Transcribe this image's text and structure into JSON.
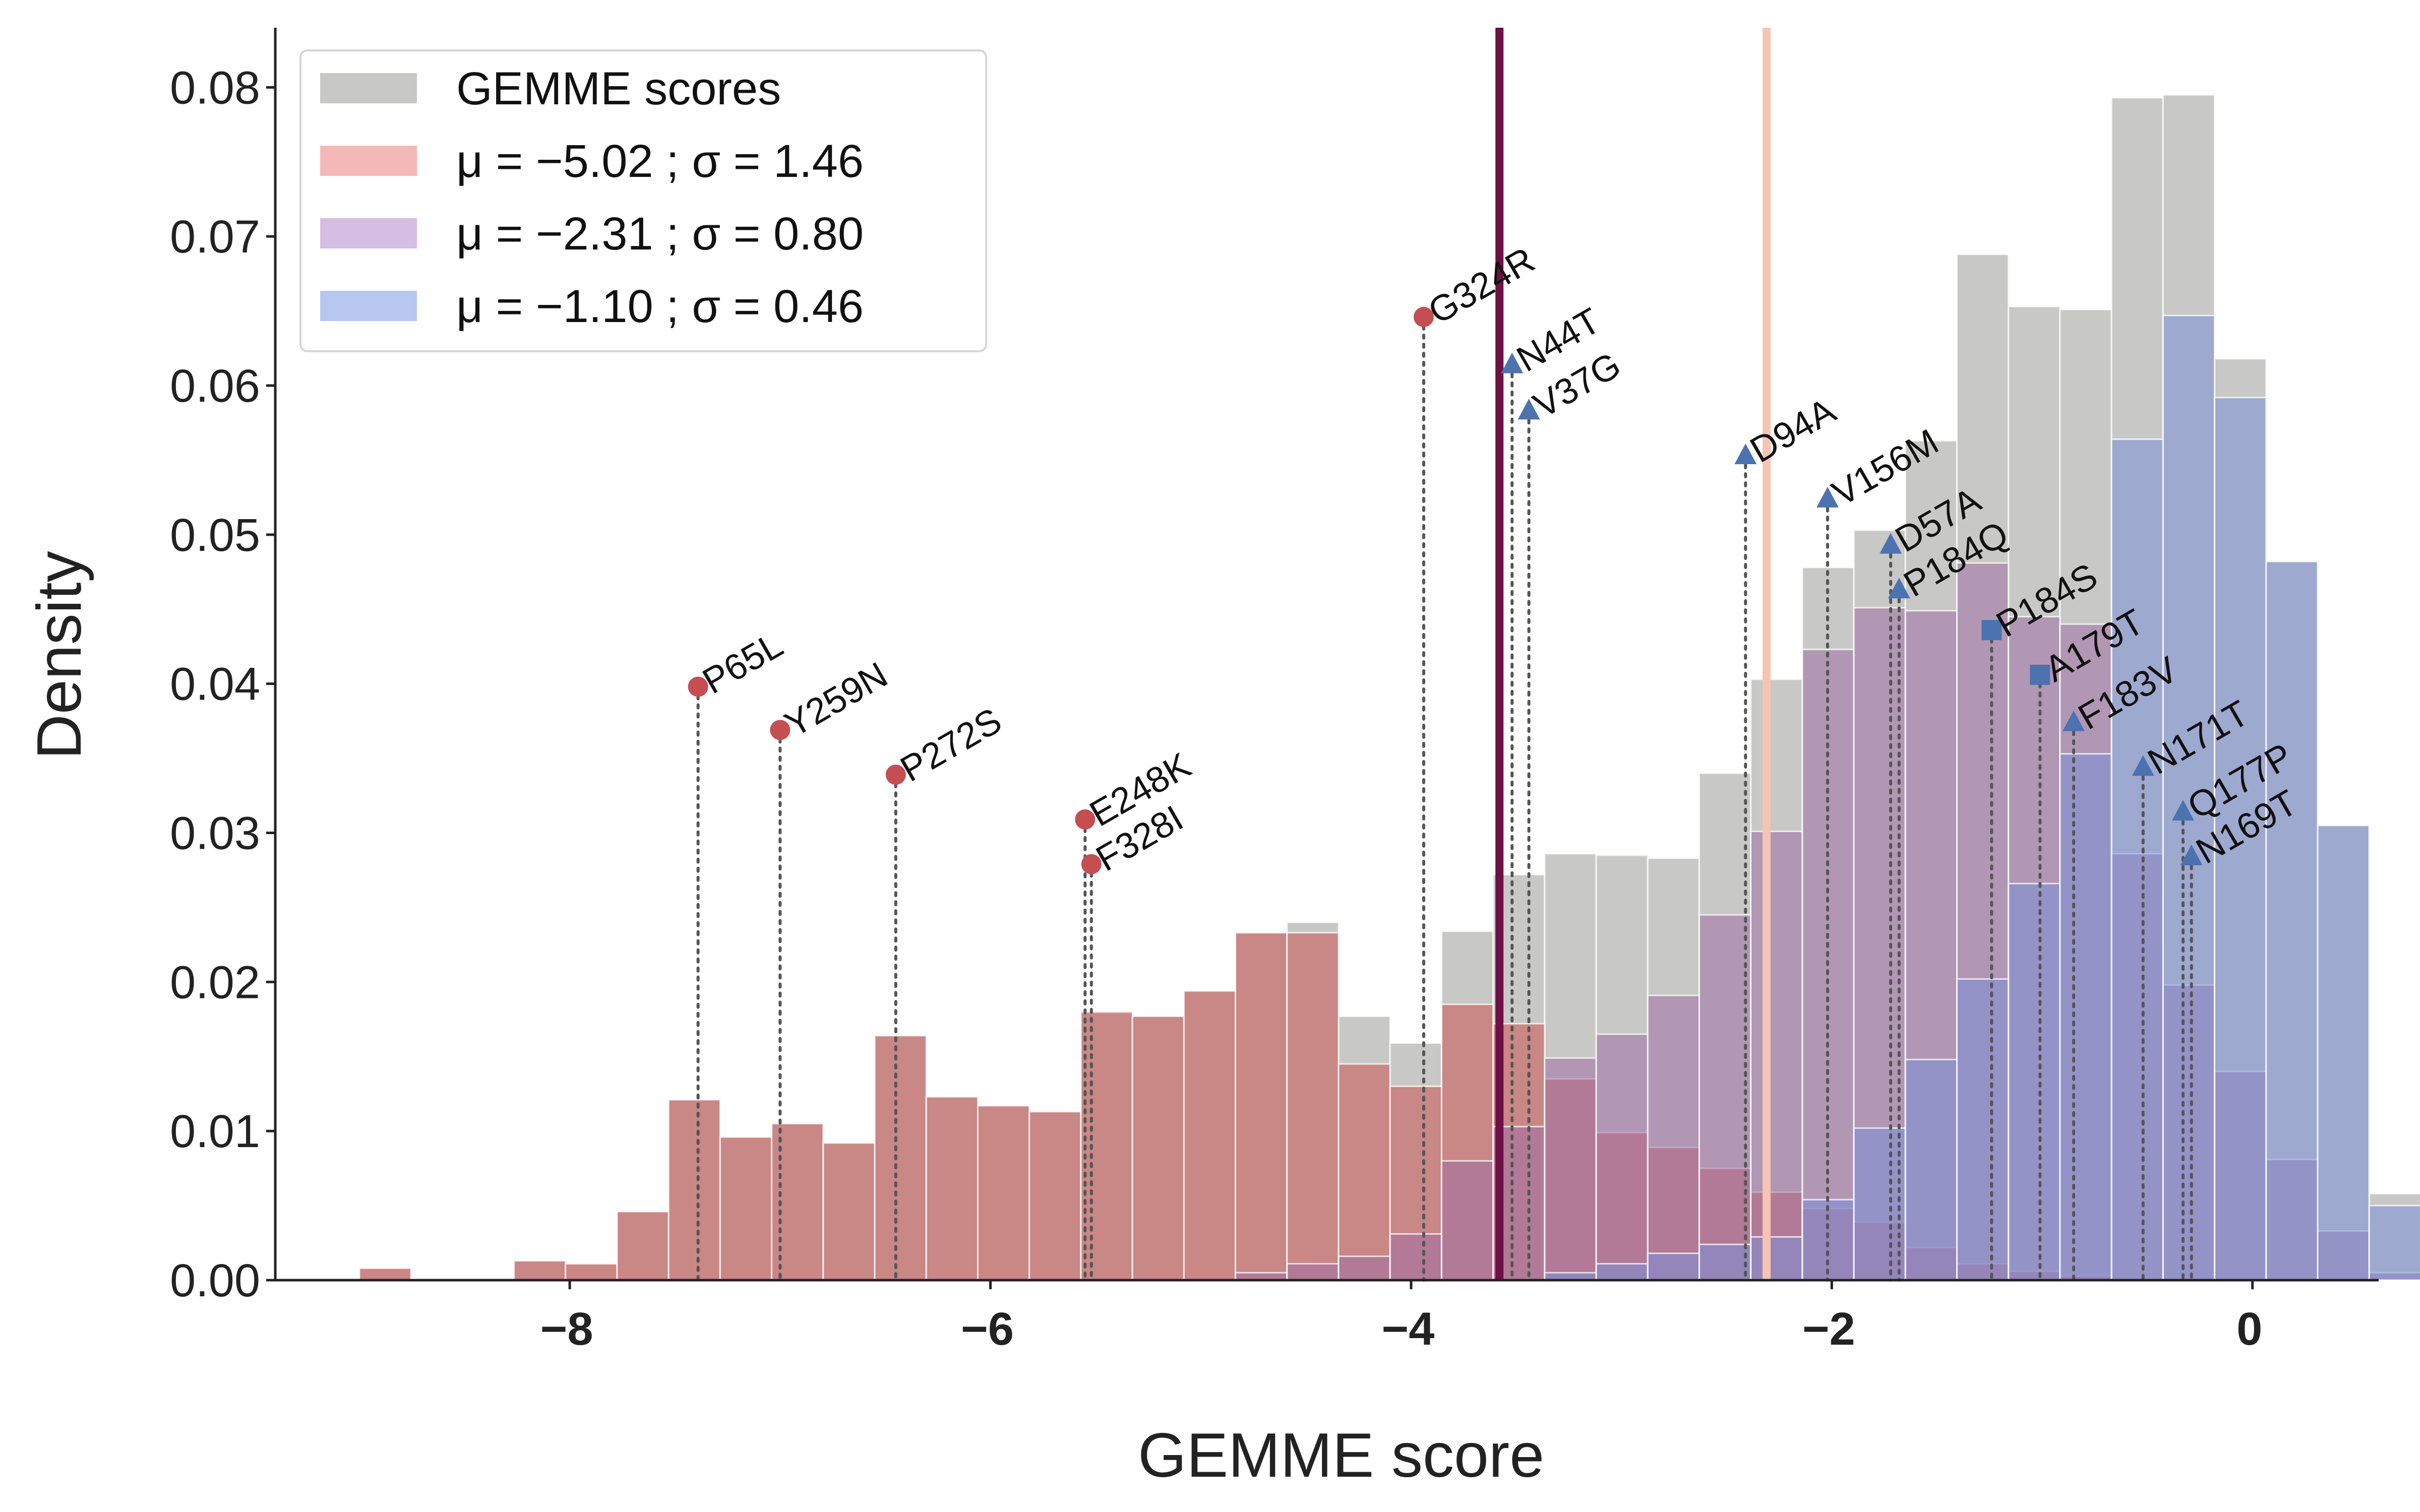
{
  "chart_data": {
    "type": "bar",
    "xlabel": "GEMME score",
    "ylabel": "Density",
    "xlim": [
      -9.4,
      0.6
    ],
    "ylim": [
      0,
      0.084
    ],
    "xticks": [
      -8,
      -6,
      -4,
      -2,
      0
    ],
    "xtick_labels": [
      "−8",
      "−6",
      "−4",
      "−2",
      "0"
    ],
    "yticks": [
      0,
      0.01,
      0.02,
      0.03,
      0.04,
      0.05,
      0.06,
      0.07,
      0.08
    ],
    "ytick_labels": [
      "0.00",
      "0.01",
      "0.02",
      "0.03",
      "0.04",
      "0.05",
      "0.06",
      "0.07",
      "0.08"
    ],
    "grid": false,
    "legend": {
      "placement": "top-left",
      "entries": [
        {
          "label": "GEMME scores",
          "color": "#c8c8c6"
        },
        {
          "label": "μ = −5.02 ; σ = 1.46",
          "color": "#f4b8b8"
        },
        {
          "label": "μ = −2.31 ; σ = 0.80",
          "color": "#d6bde3"
        },
        {
          "label": "μ = −1.10 ; σ = 0.46",
          "color": "#b8c7f0"
        }
      ]
    },
    "bin_start": -9.0,
    "bin_width": 0.245,
    "series": [
      {
        "name": "GEMME scores",
        "color": "#c8c8c6",
        "values": [
          0.0008,
          0,
          0,
          0.0013,
          0.0011,
          0.0046,
          0.0121,
          0.0096,
          0.0105,
          0.0092,
          0.0164,
          0.0123,
          0.0117,
          0.0113,
          0.0179,
          0.0177,
          0.0194,
          0.0233,
          0.024,
          0.0177,
          0.0159,
          0.0234,
          0.0272,
          0.0286,
          0.0285,
          0.0283,
          0.034,
          0.0403,
          0.0478,
          0.0503,
          0.0563,
          0.0688,
          0.0653,
          0.0651,
          0.0793,
          0.0795,
          0.0618,
          0.0482,
          0.0305,
          0.0058
        ]
      },
      {
        "name": "μ = −5.02 ; σ = 1.46",
        "color": "#c96e6e",
        "values": [
          0.0008,
          0,
          0,
          0.0013,
          0.0011,
          0.0046,
          0.0121,
          0.0096,
          0.0105,
          0.0092,
          0.0164,
          0.0123,
          0.0117,
          0.0113,
          0.018,
          0.0177,
          0.0194,
          0.0233,
          0.0233,
          0.0145,
          0.013,
          0.0185,
          0.0172,
          0.0135,
          0.0099,
          0.0089,
          0.0075,
          0.0059,
          0.0048,
          0.0039,
          0.0022,
          0.0011,
          0.0006,
          0.0003,
          0,
          0,
          0,
          0,
          0,
          0
        ]
      },
      {
        "name": "μ = −2.31 ; σ = 0.80",
        "color": "#9e6fa6",
        "values": [
          0,
          0,
          0,
          0,
          0,
          0,
          0,
          0,
          0,
          0,
          0,
          0,
          0,
          0,
          0,
          0,
          0,
          0.0005,
          0.0011,
          0.0016,
          0.0031,
          0.008,
          0.0103,
          0.0149,
          0.0165,
          0.0191,
          0.0245,
          0.0301,
          0.0423,
          0.0451,
          0.0449,
          0.0481,
          0.0445,
          0.044,
          0.0286,
          0.0198,
          0.014,
          0.0081,
          0.0033,
          0.0005
        ]
      },
      {
        "name": "μ = −1.10 ; σ = 0.46",
        "color": "#7b8fd8",
        "values": [
          0,
          0,
          0,
          0,
          0,
          0,
          0,
          0,
          0,
          0,
          0,
          0,
          0,
          0,
          0,
          0,
          0,
          0,
          0,
          0,
          0,
          0,
          0,
          0.0005,
          0.0011,
          0.0018,
          0.0024,
          0.0029,
          0.0054,
          0.0102,
          0.0148,
          0.0202,
          0.0266,
          0.0353,
          0.0564,
          0.0647,
          0.0592,
          0.0482,
          0.0305,
          0.005
        ]
      }
    ],
    "vertical_lines": [
      {
        "x": -3.58,
        "color": "#6e0f46"
      },
      {
        "x": -2.31,
        "color": "#f7c4b4"
      }
    ],
    "annotations": [
      {
        "label": "P65L",
        "x": -7.39,
        "y": 0.0398,
        "marker": "circle",
        "color": "#c44e52"
      },
      {
        "label": "Y259N",
        "x": -7.0,
        "y": 0.0369,
        "marker": "circle",
        "color": "#c44e52"
      },
      {
        "label": "P272S",
        "x": -6.45,
        "y": 0.0339,
        "marker": "circle",
        "color": "#c44e52"
      },
      {
        "label": "E248K",
        "x": -5.55,
        "y": 0.0309,
        "marker": "circle",
        "color": "#c44e52"
      },
      {
        "label": "F328I",
        "x": -5.52,
        "y": 0.0279,
        "marker": "circle",
        "color": "#c44e52"
      },
      {
        "label": "G324R",
        "x": -3.94,
        "y": 0.0646,
        "marker": "circle",
        "color": "#c44e52"
      },
      {
        "label": "N44T",
        "x": -3.52,
        "y": 0.0614,
        "marker": "triangle",
        "color": "#4c72b0"
      },
      {
        "label": "V37G",
        "x": -3.44,
        "y": 0.0583,
        "marker": "triangle",
        "color": "#4c72b0"
      },
      {
        "label": "D94A",
        "x": -2.41,
        "y": 0.0553,
        "marker": "triangle",
        "color": "#4c72b0"
      },
      {
        "label": "V156M",
        "x": -2.02,
        "y": 0.0524,
        "marker": "triangle",
        "color": "#4c72b0"
      },
      {
        "label": "D57A",
        "x": -1.72,
        "y": 0.0493,
        "marker": "triangle",
        "color": "#4c72b0"
      },
      {
        "label": "P184Q",
        "x": -1.68,
        "y": 0.0463,
        "marker": "triangle",
        "color": "#4c72b0"
      },
      {
        "label": "P184S",
        "x": -1.24,
        "y": 0.0436,
        "marker": "square",
        "color": "#4c72b0"
      },
      {
        "label": "A179T",
        "x": -1.01,
        "y": 0.0406,
        "marker": "square",
        "color": "#4c72b0"
      },
      {
        "label": "F183V",
        "x": -0.85,
        "y": 0.0374,
        "marker": "triangle",
        "color": "#4c72b0"
      },
      {
        "label": "N171T",
        "x": -0.52,
        "y": 0.0344,
        "marker": "triangle",
        "color": "#4c72b0"
      },
      {
        "label": "Q177P",
        "x": -0.33,
        "y": 0.0314,
        "marker": "triangle",
        "color": "#4c72b0"
      },
      {
        "label": "N169T",
        "x": -0.29,
        "y": 0.0284,
        "marker": "triangle",
        "color": "#4c72b0"
      }
    ]
  }
}
